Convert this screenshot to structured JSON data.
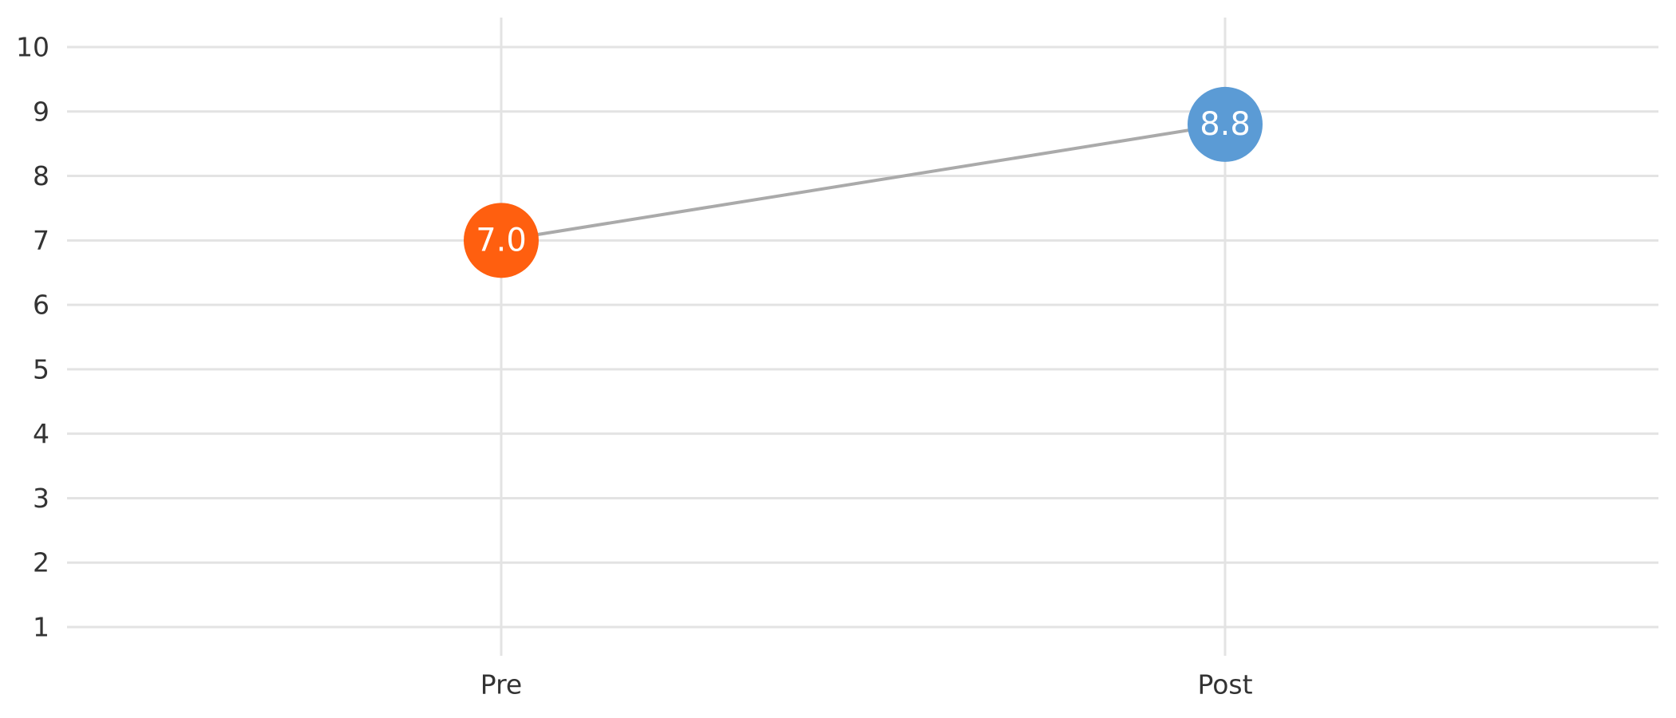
{
  "chart_data": {
    "type": "line",
    "categories": [
      "Pre",
      "Post"
    ],
    "values": [
      7.0,
      8.8
    ],
    "value_labels": [
      "7.0",
      "8.8"
    ],
    "point_colors": [
      "#ff5f0f",
      "#5b9bd5"
    ],
    "connector_color": "#aaaaaa",
    "yticks": [
      "1",
      "2",
      "3",
      "4",
      "5",
      "6",
      "7",
      "8",
      "9",
      "10"
    ],
    "ylim": [
      1,
      10
    ],
    "grid": true,
    "title": "",
    "xlabel": "",
    "ylabel": ""
  }
}
